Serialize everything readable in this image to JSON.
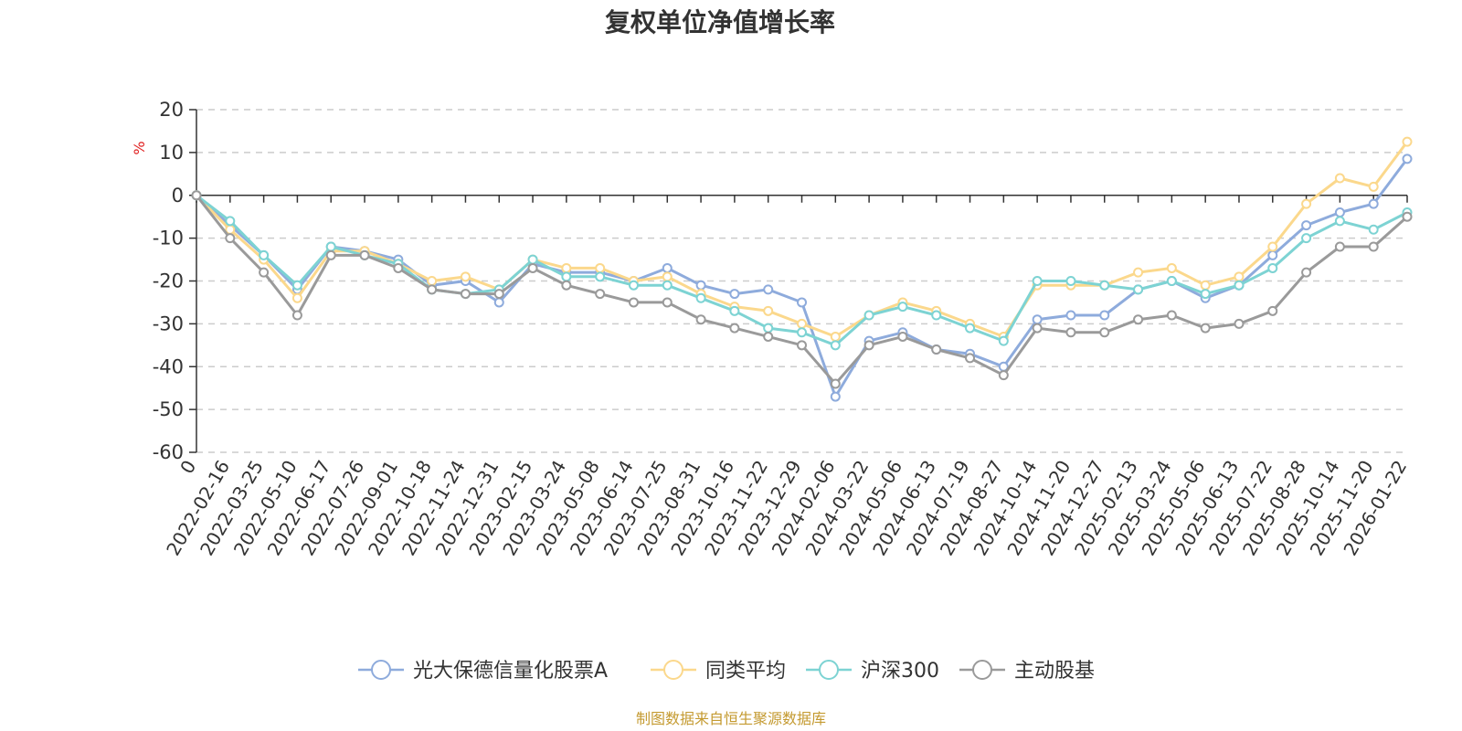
{
  "chart_data": {
    "type": "line",
    "title": "复权单位净值增长率",
    "ylabel": "%",
    "ylim": [
      -60,
      20
    ],
    "yticks": [
      20,
      10,
      0,
      -10,
      -20,
      -30,
      -40,
      -50,
      -60
    ],
    "x_tick_labels": [
      "0",
      "2022-02-16",
      "2022-03-25",
      "2022-05-10",
      "2022-06-17",
      "2022-07-26",
      "2022-09-01",
      "2022-10-18",
      "2022-11-24",
      "2022-12-31",
      "2023-02-15",
      "2023-03-24",
      "2023-05-08",
      "2023-06-14",
      "2023-07-25",
      "2023-08-31",
      "2023-10-16",
      "2023-11-22",
      "2023-12-29",
      "2024-02-06",
      "2024-03-22",
      "2024-05-06",
      "2024-06-13",
      "2024-07-19",
      "2024-08-27",
      "2024-10-14",
      "2024-11-20",
      "2024-12-27",
      "2025-02-13",
      "2025-03-24",
      "2025-05-06",
      "2025-06-13",
      "2025-07-22",
      "2025-08-28",
      "2025-10-14",
      "2025-11-20",
      "2026-01-22"
    ],
    "grid": true,
    "legend_position": "bottom",
    "series": [
      {
        "name": "光大保德信量化股票A",
        "color": "#8eabdc",
        "values": [
          0,
          -7,
          -14,
          -22,
          -12,
          -13,
          -15,
          -21,
          -20,
          -25,
          -16,
          -18,
          -18,
          -20,
          -17,
          -21,
          -23,
          -22,
          -25,
          -47,
          -34,
          -32,
          -36,
          -37,
          -40,
          -29,
          -28,
          -28,
          -22,
          -20,
          -24,
          -21,
          -14,
          -7,
          -4,
          -2,
          8.5
        ]
      },
      {
        "name": "同类平均",
        "color": "#fbd88c",
        "values": [
          0,
          -8,
          -15,
          -24,
          -13,
          -13,
          -16,
          -20,
          -19,
          -22,
          -15,
          -17,
          -17,
          -20,
          -19,
          -23,
          -26,
          -27,
          -30,
          -33,
          -28,
          -25,
          -27,
          -30,
          -33,
          -21,
          -21,
          -21,
          -18,
          -17,
          -21,
          -19,
          -12,
          -2,
          4,
          2,
          12.5
        ]
      },
      {
        "name": "沪深300",
        "color": "#7dd3d3",
        "values": [
          0,
          -6,
          -14,
          -21,
          -12,
          -14,
          -16,
          -22,
          -23,
          -22,
          -15,
          -19,
          -19,
          -21,
          -21,
          -24,
          -27,
          -31,
          -32,
          -35,
          -28,
          -26,
          -28,
          -31,
          -34,
          -20,
          -20,
          -21,
          -22,
          -20,
          -23,
          -21,
          -17,
          -10,
          -6,
          -8,
          -4
        ]
      },
      {
        "name": "主动股基",
        "color": "#9a9a9a",
        "values": [
          0,
          -10,
          -18,
          -28,
          -14,
          -14,
          -17,
          -22,
          -23,
          -23,
          -17,
          -21,
          -23,
          -25,
          -25,
          -29,
          -31,
          -33,
          -35,
          -44,
          -35,
          -33,
          -36,
          -38,
          -42,
          -31,
          -32,
          -32,
          -29,
          -28,
          -31,
          -30,
          -27,
          -18,
          -12,
          -12,
          -5
        ]
      }
    ],
    "source_note": "制图数据来自恒生聚源数据库"
  }
}
